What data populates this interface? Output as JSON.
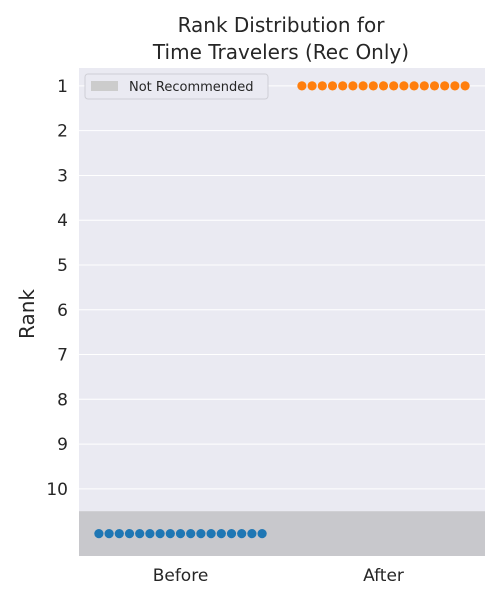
{
  "chart_data": {
    "type": "scatter",
    "title_lines": [
      "Rank Distribution for",
      "Time Travelers (Rec Only)"
    ],
    "xlabel": "",
    "ylabel": "Rank",
    "categories": [
      "Before",
      "After"
    ],
    "y_ticks": [
      "1",
      "2",
      "3",
      "4",
      "5",
      "6",
      "7",
      "8",
      "9",
      "10"
    ],
    "ylim": [
      0.6,
      11.5
    ],
    "y_inverted": true,
    "not_recommended_band": [
      10.5,
      11.5
    ],
    "legend": {
      "position": "top-left",
      "label": "Not Recommended"
    },
    "grid": true,
    "series": [
      {
        "category": "Before",
        "rank_value": "Not Recommended",
        "y": 11,
        "count": 17,
        "color": "#1f77b4"
      },
      {
        "category": "After",
        "rank_value": 1,
        "y": 1,
        "count": 17,
        "color": "#ff7f0e"
      }
    ],
    "colors": {
      "plot_background": "#eaeaf2",
      "grid": "#ffffff",
      "band": "#c8c8cc",
      "legend_patch": "#cccccc"
    }
  }
}
